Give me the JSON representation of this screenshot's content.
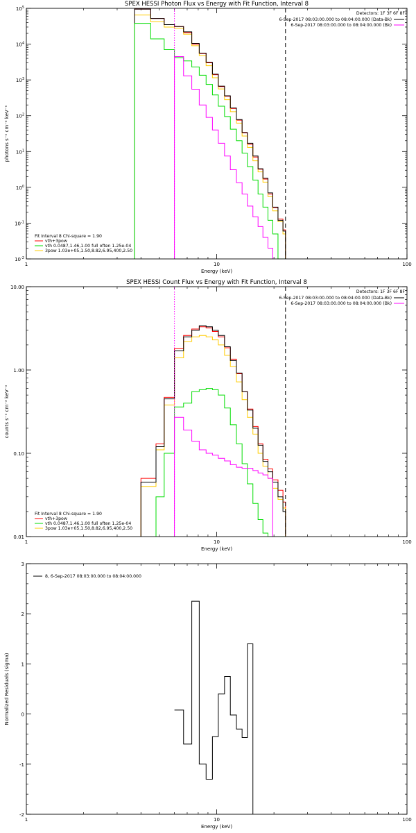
{
  "colors": {
    "data": "#000000",
    "background": "#ff00ff",
    "total_fit": "#ff0000",
    "vth": "#00dd00",
    "pow": "#ffcc00"
  },
  "chart_data": [
    {
      "type": "line",
      "title": "SPEX HESSI Photon Flux vs Energy with Fit Function, Interval 8",
      "xlabel": "Energy (keV)",
      "ylabel": "photons s⁻¹ cm⁻² keV⁻¹",
      "xscale": "log",
      "yscale": "log",
      "xlim": [
        1,
        100
      ],
      "ylim": [
        0.01,
        100000
      ],
      "xticks": [
        {
          "v": 1,
          "label": "1"
        },
        {
          "v": 10,
          "label": "10"
        },
        {
          "v": 100,
          "label": "100"
        }
      ],
      "yticks": [
        {
          "v": 0.01,
          "base": "10",
          "exp": "-2"
        },
        {
          "v": 0.1,
          "base": "10",
          "exp": "-1"
        },
        {
          "v": 1,
          "base": "10",
          "exp": "0"
        },
        {
          "v": 10,
          "base": "10",
          "exp": "1"
        },
        {
          "v": 100,
          "base": "10",
          "exp": "2"
        },
        {
          "v": 1000,
          "base": "10",
          "exp": "3"
        },
        {
          "v": 10000,
          "base": "10",
          "exp": "4"
        },
        {
          "v": 100000,
          "base": "10",
          "exp": "5"
        }
      ],
      "legend": {
        "detectors": "Detectors: 1F 3F 6F 8F",
        "entries": [
          {
            "label": "6-Sep-2017 08:03:00.000 to 08:04:00.000 (Data-Bk)",
            "color": "#000000"
          },
          {
            "label": "6-Sep-2017 08:03:00.000 to 08:04:00.000 (Bk)",
            "color": "#ff00ff"
          }
        ],
        "placement": "top-right"
      },
      "fit_legend": {
        "header": "Fit Interval 8   Chi-square = 1.90",
        "entries": [
          {
            "label": "vth+3pow",
            "color": "#ff0000"
          },
          {
            "label": "vth 0.0487,1.46,1.00  full often 1.25e-04",
            "color": "#00dd00"
          },
          {
            "label": "3pow 1.03e+05,1.50,8.82,6.95,400,2.50",
            "color": "#ffcc00"
          }
        ],
        "placement": "bottom-left"
      },
      "markers": [
        {
          "x": 6.0,
          "style": "dotted",
          "color": "#ff00ff"
        },
        {
          "x": 23.0,
          "style": "dashed",
          "color": "#000000"
        }
      ],
      "bin_edges": [
        3.7,
        4.5,
        5.3,
        6.0,
        6.7,
        7.4,
        8.1,
        8.8,
        9.5,
        10.2,
        11.0,
        11.8,
        12.7,
        13.6,
        14.5,
        15.5,
        16.5,
        17.5,
        18.6,
        19.7,
        21.0,
        22.3,
        23.0
      ],
      "series": [
        {
          "key": "total_fit",
          "color": "#ff0000",
          "values": [
            95000,
            52000,
            35000,
            31000,
            21000,
            10000,
            5500,
            3000,
            1400,
            650,
            350,
            160,
            75,
            33,
            16,
            7,
            3.2,
            1.7,
            0.65,
            0.27,
            0.13,
            0.065
          ]
        },
        {
          "key": "pow",
          "color": "#ffcc00",
          "values": [
            65000,
            42000,
            30000,
            28000,
            19000,
            9000,
            4800,
            2500,
            1150,
            560,
            280,
            130,
            62,
            27,
            13,
            5.5,
            2.7,
            1.4,
            0.55,
            0.22,
            0.11,
            0.05
          ]
        },
        {
          "key": "data",
          "color": "#000000",
          "values": [
            95000,
            52000,
            35000,
            31000,
            22000,
            10500,
            5600,
            3100,
            1450,
            670,
            360,
            165,
            78,
            34,
            17,
            7.5,
            3.3,
            1.8,
            0.7,
            0.28,
            0.12,
            0.06
          ]
        },
        {
          "key": "vth",
          "color": "#00dd00",
          "values": [
            38000,
            14000,
            7000,
            4200,
            3400,
            2300,
            1350,
            750,
            380,
            185,
            95,
            42,
            20,
            9,
            3.8,
            1.6,
            0.65,
            0.28,
            0.12,
            0.05,
            0.01,
            0.01
          ]
        },
        {
          "key": "background",
          "color": "#ff00ff",
          "values": [
            null,
            null,
            null,
            4500,
            1300,
            550,
            200,
            90,
            40,
            17,
            7.5,
            3.1,
            1.35,
            0.65,
            0.3,
            0.15,
            0.08,
            0.04,
            0.02,
            null,
            null,
            null
          ]
        }
      ]
    },
    {
      "type": "line",
      "title": "SPEX HESSI Count Flux vs Energy with Fit Function, Interval 8",
      "xlabel": "Energy (keV)",
      "ylabel": "counts s⁻¹ cm⁻² keV⁻¹",
      "xscale": "log",
      "yscale": "log",
      "xlim": [
        1,
        100
      ],
      "ylim": [
        0.01,
        10
      ],
      "xticks": [
        {
          "v": 1,
          "label": "1"
        },
        {
          "v": 10,
          "label": "10"
        },
        {
          "v": 100,
          "label": "100"
        }
      ],
      "yticks": [
        {
          "v": 0.01,
          "label": "0.01"
        },
        {
          "v": 0.1,
          "label": "0.10"
        },
        {
          "v": 1,
          "label": "1.00"
        },
        {
          "v": 10,
          "label": "10.00"
        }
      ],
      "legend": {
        "detectors": "Detectors: 1F 3F 6F 8F",
        "entries": [
          {
            "label": "6-Sep-2017 08:03:00.000 to 08:04:00.000 (Data-Bk)",
            "color": "#000000"
          },
          {
            "label": "6-Sep-2017 08:03:00.000 to 08:04:00.000 (Bk)",
            "color": "#ff00ff"
          }
        ],
        "placement": "top-right"
      },
      "fit_legend": {
        "header": "Fit Interval 8   Chi-square = 1.90",
        "entries": [
          {
            "label": "vth+3pow",
            "color": "#ff0000"
          },
          {
            "label": "vth 0.0487,1.46,1.00  full often 1.25e-04",
            "color": "#00dd00"
          },
          {
            "label": "3pow 1.03e+05,1.50,8.82,6.95,400,2.50",
            "color": "#ffcc00"
          }
        ],
        "placement": "bottom-left"
      },
      "markers": [
        {
          "x": 6.0,
          "style": "dotted",
          "color": "#ff00ff"
        },
        {
          "x": 23.0,
          "style": "dashed",
          "color": "#000000"
        }
      ],
      "bin_edges": [
        4.0,
        4.8,
        5.3,
        6.0,
        6.7,
        7.4,
        8.1,
        8.8,
        9.5,
        10.2,
        11.0,
        11.8,
        12.7,
        13.6,
        14.5,
        15.5,
        16.5,
        17.5,
        18.6,
        19.7,
        21.0,
        22.3,
        23.0
      ],
      "series": [
        {
          "key": "total_fit",
          "color": "#ff0000",
          "values": [
            0.05,
            0.13,
            0.47,
            1.8,
            2.6,
            3.1,
            3.3,
            3.2,
            2.9,
            2.5,
            1.85,
            1.35,
            0.9,
            0.55,
            0.34,
            0.21,
            0.13,
            0.085,
            0.065,
            0.048,
            0.036,
            0.026
          ]
        },
        {
          "key": "pow",
          "color": "#ffcc00",
          "values": [
            0.04,
            0.11,
            0.38,
            1.4,
            2.2,
            2.5,
            2.6,
            2.5,
            2.3,
            2.0,
            1.5,
            1.1,
            0.72,
            0.44,
            0.27,
            0.17,
            0.1,
            0.07,
            0.05,
            0.038,
            0.028,
            0.022
          ]
        },
        {
          "key": "data",
          "color": "#000000",
          "values": [
            0.045,
            0.12,
            0.45,
            1.7,
            2.5,
            3.0,
            3.4,
            3.3,
            3.0,
            2.6,
            1.9,
            1.3,
            0.92,
            0.55,
            0.33,
            0.2,
            0.125,
            0.08,
            0.06,
            0.045,
            0.03,
            0.02
          ]
        },
        {
          "key": "vth",
          "color": "#00dd00",
          "values": [
            0.009,
            0.03,
            0.1,
            0.36,
            0.4,
            0.55,
            0.58,
            0.6,
            0.58,
            0.5,
            0.35,
            0.22,
            0.13,
            0.075,
            0.043,
            0.025,
            0.016,
            0.011,
            0.01,
            0.01,
            0.01,
            0.01
          ]
        },
        {
          "key": "background",
          "color": "#ff00ff",
          "values": [
            null,
            null,
            null,
            0.27,
            0.19,
            0.14,
            0.11,
            0.1,
            0.095,
            0.087,
            0.081,
            0.073,
            0.068,
            0.066,
            0.066,
            0.062,
            0.058,
            0.055,
            0.05,
            null,
            null,
            null
          ]
        }
      ]
    },
    {
      "type": "line",
      "title": "",
      "xlabel": "Energy (keV)",
      "ylabel": "Normalized Residuals (sigma)",
      "xscale": "log",
      "yscale": "linear",
      "xlim": [
        1,
        100
      ],
      "ylim": [
        -2,
        3
      ],
      "xticks": [
        {
          "v": 1,
          "label": "1"
        },
        {
          "v": 10,
          "label": "10"
        },
        {
          "v": 100,
          "label": "100"
        }
      ],
      "yticks": [
        {
          "v": -2,
          "label": "-2"
        },
        {
          "v": -1,
          "label": "-1"
        },
        {
          "v": 0,
          "label": "0"
        },
        {
          "v": 1,
          "label": "1"
        },
        {
          "v": 2,
          "label": "2"
        },
        {
          "v": 3,
          "label": "3"
        }
      ],
      "legend": {
        "entries": [
          {
            "label": "8,  6-Sep-2017 08:03:00.000 to 08:04:00.000",
            "color": "#000000"
          }
        ],
        "placement": "top-left"
      },
      "bin_edges": [
        6.0,
        6.7,
        7.4,
        8.1,
        8.8,
        9.5,
        10.2,
        11.0,
        11.8,
        12.7,
        13.6,
        14.5,
        15.5,
        16.5,
        17.5,
        18.6,
        19.7,
        21.0,
        22.3
      ],
      "series": [
        {
          "key": "residuals",
          "color": "#000000",
          "values": [
            0.08,
            -0.6,
            2.25,
            -1.0,
            -1.3,
            -0.45,
            0.4,
            0.75,
            -0.02,
            -0.3,
            -0.47,
            1.4
          ]
        }
      ]
    }
  ]
}
